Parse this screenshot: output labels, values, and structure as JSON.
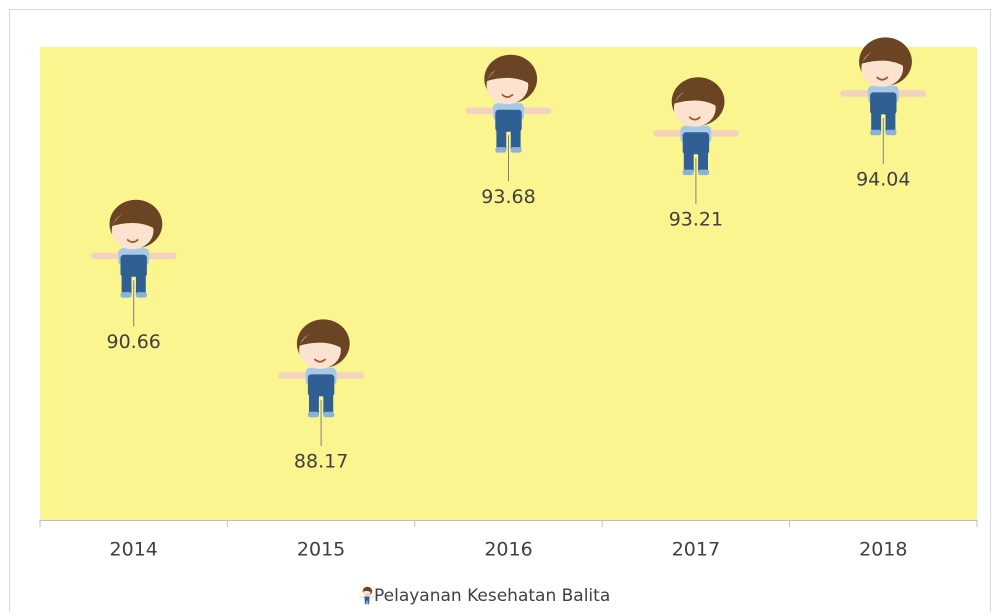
{
  "chart_data": {
    "type": "line",
    "categories": [
      "2014",
      "2015",
      "2016",
      "2017",
      "2018"
    ],
    "series": [
      {
        "name": "Pelayanan Kesehatan Balita",
        "values": [
          90.66,
          88.17,
          93.68,
          93.21,
          94.04
        ]
      }
    ]
  }
}
